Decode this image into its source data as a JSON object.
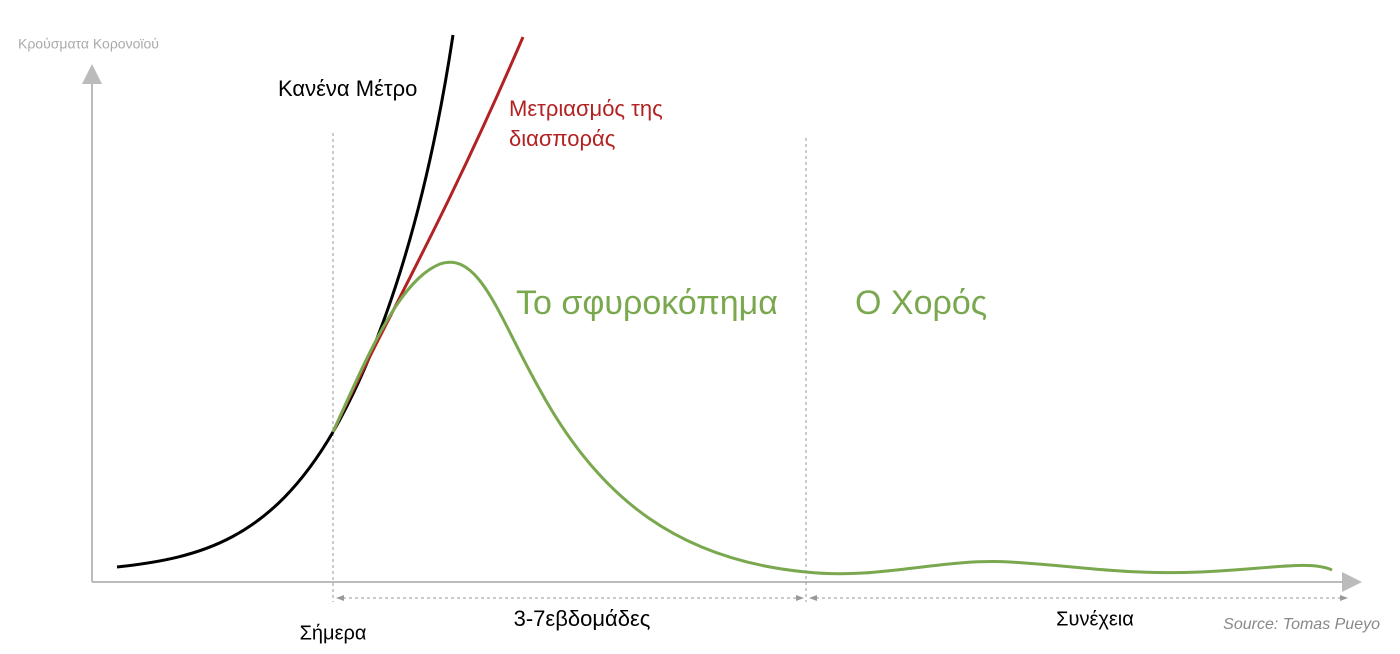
{
  "y_axis_label": "Κρούσματα Κορονοϊού",
  "curves": {
    "no_measures": "Κανένα Μέτρο",
    "mitigation": [
      "Μετριασμός της",
      "διασποράς"
    ],
    "hammer": "Το σφυροκόπημα",
    "dance": "Ο Χορός"
  },
  "timeline": {
    "today": "Σήμερα",
    "weeks": "3-7εβδομάδες",
    "continuation": "Συνέχεια"
  },
  "source": "Source: Tomas Pueyo"
}
